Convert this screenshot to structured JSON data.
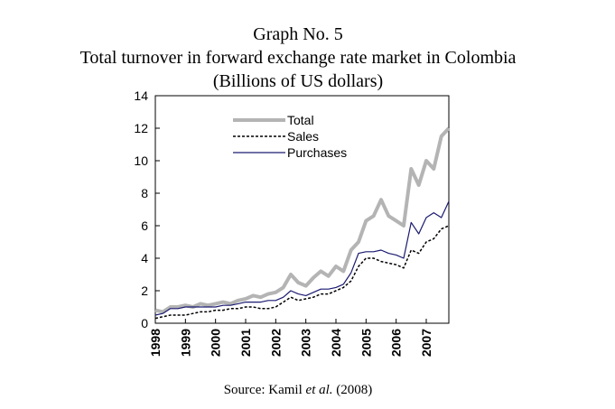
{
  "chart_data": {
    "type": "line",
    "title": [
      "Graph No. 5",
      "Total turnover in forward exchange rate market in Colombia",
      "(Billions of US dollars)"
    ],
    "source": [
      "Source: Kamil",
      "et al.",
      "(2008)"
    ],
    "x": [
      1998,
      1998.25,
      1998.5,
      1998.75,
      1999,
      1999.25,
      1999.5,
      1999.75,
      2000,
      2000.25,
      2000.5,
      2000.75,
      2001,
      2001.25,
      2001.5,
      2001.75,
      2002,
      2002.25,
      2002.5,
      2002.75,
      2003,
      2003.25,
      2003.5,
      2003.75,
      2004,
      2004.25,
      2004.5,
      2004.75,
      2005,
      2005.25,
      2005.5,
      2005.75,
      2006,
      2006.25,
      2006.5,
      2006.75,
      2007,
      2007.25,
      2007.5,
      2007.75
    ],
    "series": [
      {
        "name": "Total",
        "color": "#b4b4b4",
        "width": 4,
        "dash": false,
        "values": [
          0.8,
          0.7,
          1.0,
          1.0,
          1.1,
          1.0,
          1.2,
          1.1,
          1.2,
          1.3,
          1.2,
          1.4,
          1.5,
          1.7,
          1.6,
          1.8,
          1.9,
          2.2,
          3.0,
          2.5,
          2.3,
          2.8,
          3.2,
          2.9,
          3.5,
          3.2,
          4.5,
          5.0,
          6.3,
          6.6,
          7.6,
          6.6,
          6.3,
          6.0,
          9.5,
          8.5,
          10.0,
          9.5,
          11.5,
          12.0
        ]
      },
      {
        "name": "Sales",
        "color": "#000000",
        "width": 1.5,
        "dash": true,
        "values": [
          0.3,
          0.4,
          0.5,
          0.5,
          0.5,
          0.6,
          0.7,
          0.7,
          0.8,
          0.8,
          0.9,
          0.9,
          1.0,
          1.0,
          0.9,
          0.9,
          1.0,
          1.3,
          1.6,
          1.4,
          1.5,
          1.6,
          1.8,
          1.8,
          2.0,
          2.2,
          2.6,
          3.5,
          4.0,
          4.0,
          3.8,
          3.7,
          3.6,
          3.4,
          4.5,
          4.3,
          5.0,
          5.2,
          5.8,
          6.0
        ]
      },
      {
        "name": "Purchases",
        "color": "#1a1a70",
        "width": 1.2,
        "dash": false,
        "values": [
          0.5,
          0.6,
          0.9,
          0.9,
          1.0,
          1.0,
          1.0,
          1.0,
          1.0,
          1.1,
          1.1,
          1.2,
          1.3,
          1.3,
          1.3,
          1.4,
          1.4,
          1.6,
          2.0,
          1.8,
          1.7,
          1.9,
          2.1,
          2.1,
          2.2,
          2.4,
          3.1,
          4.3,
          4.4,
          4.4,
          4.5,
          4.3,
          4.2,
          4.0,
          6.2,
          5.5,
          6.5,
          6.8,
          6.5,
          7.5
        ]
      }
    ],
    "xlim": [
      1998,
      2007.75
    ],
    "xticks": [
      1998,
      1999,
      2000,
      2001,
      2002,
      2003,
      2004,
      2005,
      2006,
      2007
    ],
    "ylim": [
      0,
      14
    ],
    "yticks": [
      0,
      2,
      4,
      6,
      8,
      10,
      12,
      14
    ]
  }
}
